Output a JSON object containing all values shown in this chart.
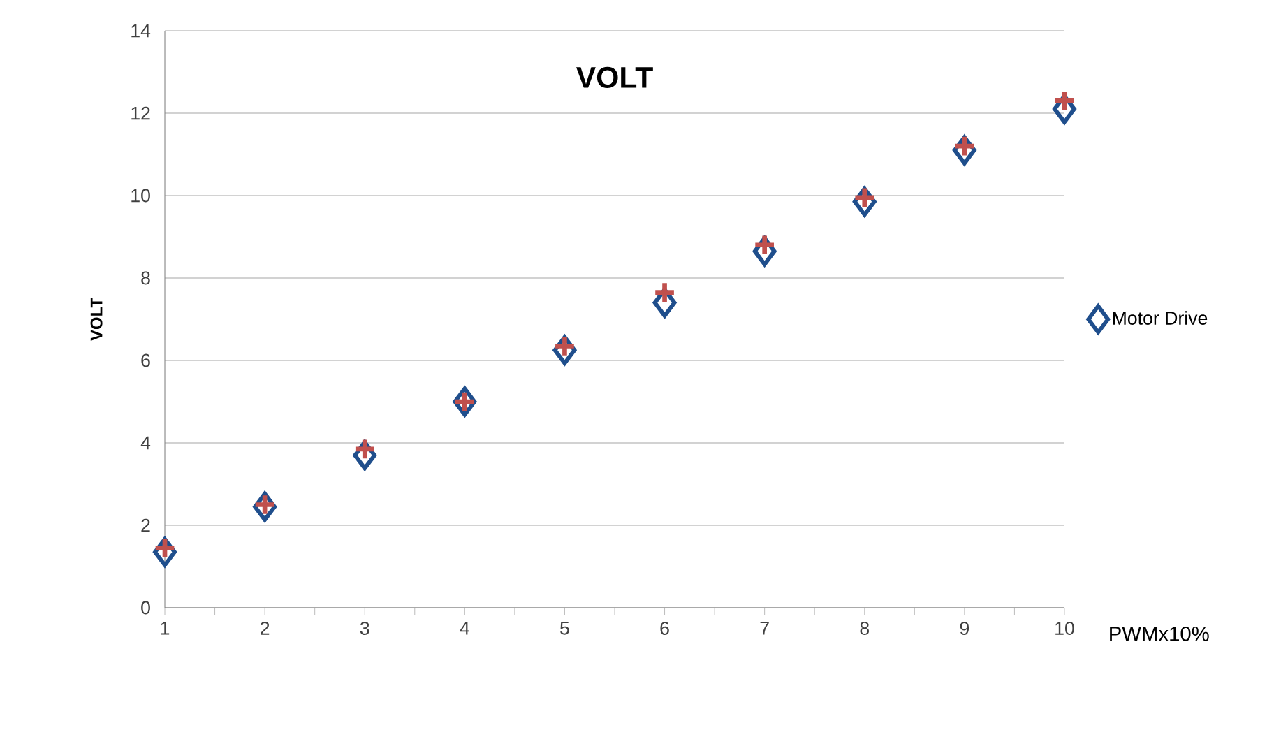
{
  "chart_data": {
    "type": "scatter",
    "title": "VOLT",
    "xlabel": "PWMx10%",
    "ylabel": "VOLT",
    "x": [
      1,
      2,
      3,
      4,
      5,
      6,
      7,
      8,
      9,
      10
    ],
    "series": [
      {
        "name": "Motor Drive",
        "color": "#1f4e8c",
        "marker": "diamond",
        "values": [
          1.35,
          2.45,
          3.7,
          5.0,
          6.25,
          7.4,
          8.65,
          9.85,
          11.1,
          12.1
        ]
      },
      {
        "color": "#c0504d",
        "marker": "cross",
        "values": [
          1.45,
          2.5,
          3.85,
          5.0,
          6.35,
          7.65,
          8.8,
          9.95,
          11.2,
          12.3
        ]
      }
    ],
    "xlim": [
      1,
      10
    ],
    "xticks": [
      1,
      2,
      3,
      4,
      5,
      6,
      7,
      8,
      9,
      10
    ],
    "ylim": [
      0,
      14
    ],
    "yticks": [
      0,
      2,
      4,
      6,
      8,
      10,
      12,
      14
    ],
    "grid": "y",
    "legend": "right"
  }
}
